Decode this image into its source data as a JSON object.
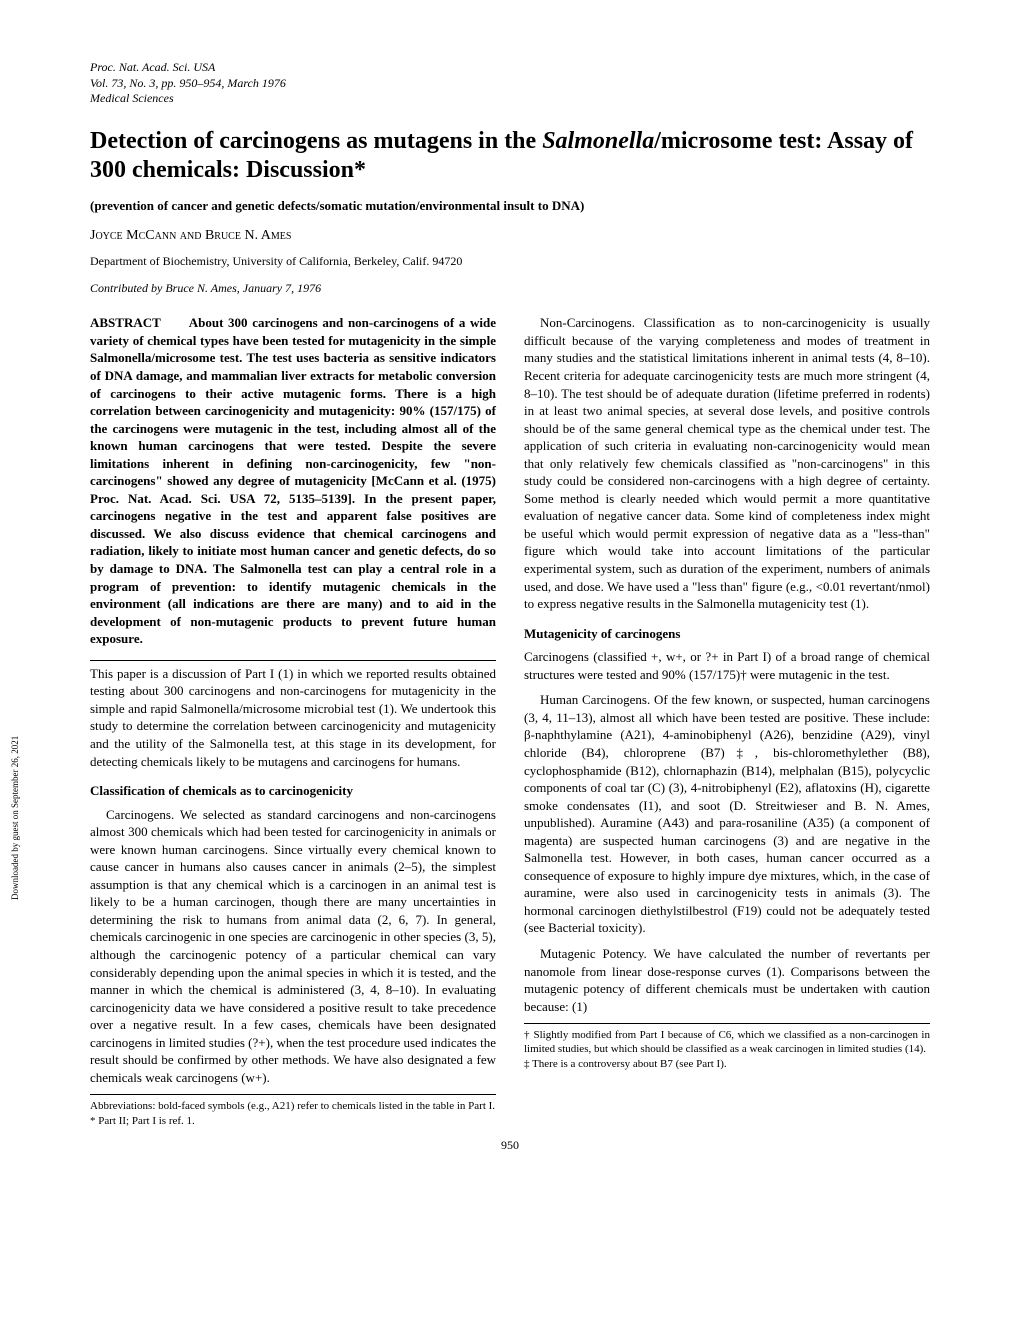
{
  "header": {
    "line1": "Proc. Nat. Acad. Sci. USA",
    "line2": "Vol. 73, No. 3, pp. 950–954, March 1976",
    "line3": "Medical Sciences"
  },
  "title": {
    "part1": "Detection of carcinogens as mutagens in the ",
    "italic": "Salmonella",
    "part2": "/microsome test: Assay of 300 chemicals: Discussion*"
  },
  "subtitle": "(prevention of cancer and genetic defects/somatic mutation/environmental insult to DNA)",
  "authors": "Joyce McCann and Bruce N. Ames",
  "affiliation": "Department of Biochemistry, University of California, Berkeley, Calif. 94720",
  "contributed": "Contributed by Bruce N. Ames, January 7, 1976",
  "abstract_label": "ABSTRACT",
  "abstract_text": "About 300 carcinogens and non-carcinogens of a wide variety of chemical types have been tested for mutagenicity in the simple Salmonella/microsome test. The test uses bacteria as sensitive indicators of DNA damage, and mammalian liver extracts for metabolic conversion of carcinogens to their active mutagenic forms. There is a high correlation between carcinogenicity and mutagenicity: 90% (157/175) of the carcinogens were mutagenic in the test, including almost all of the known human carcinogens that were tested. Despite the severe limitations inherent in defining non-carcinogenicity, few \"non-carcinogens\" showed any degree of mutagenicity [McCann et al. (1975) Proc. Nat. Acad. Sci. USA 72, 5135–5139]. In the present paper, carcinogens negative in the test and apparent false positives are discussed. We also discuss evidence that chemical carcinogens and radiation, likely to initiate most human cancer and genetic defects, do so by damage to DNA. The Salmonella test can play a central role in a program of prevention: to identify mutagenic chemicals in the environment (all indications are there are many) and to aid in the development of non-mutagenic products to prevent future human exposure.",
  "col1_p1": "This paper is a discussion of Part I (1) in which we reported results obtained testing about 300 carcinogens and non-carcinogens for mutagenicity in the simple and rapid Salmonella/microsome microbial test (1). We undertook this study to determine the correlation between carcinogenicity and mutagenicity and the utility of the Salmonella test, at this stage in its development, for detecting chemicals likely to be mutagens and carcinogens for humans.",
  "heading1": "Classification of chemicals as to carcinogenicity",
  "col1_p2": "Carcinogens. We selected as standard carcinogens and non-carcinogens almost 300 chemicals which had been tested for carcinogenicity in animals or were known human carcinogens. Since virtually every chemical known to cause cancer in humans also causes cancer in animals (2–5), the simplest assumption is that any chemical which is a carcinogen in an animal test is likely to be a human carcinogen, though there are many uncertainties in determining the risk to humans from animal data (2, 6, 7). In general, chemicals carcinogenic in one species are carcinogenic in other species (3, 5), although the carcinogenic potency of a particular chemical can vary considerably depending upon the animal species in which it is tested, and the manner in which the chemical is administered (3, 4, 8–10). In evaluating carcinogenicity data we have considered a positive result to take precedence over a negative result. In a few cases, chemicals have been designated carcinogens in limited studies (?+), when the test procedure used indicates the result should be confirmed by other methods. We have also designated a few chemicals weak carcinogens (w+).",
  "col1_footnote1": "Abbreviations: bold-faced symbols (e.g., A21) refer to chemicals listed in the table in Part I.",
  "col1_footnote2": "* Part II; Part I is ref. 1.",
  "col2_p1": "Non-Carcinogens. Classification as to non-carcinogenicity is usually difficult because of the varying completeness and modes of treatment in many studies and the statistical limitations inherent in animal tests (4, 8–10). Recent criteria for adequate carcinogenicity tests are much more stringent (4, 8–10). The test should be of adequate duration (lifetime preferred in rodents) in at least two animal species, at several dose levels, and positive controls should be of the same general chemical type as the chemical under test. The application of such criteria in evaluating non-carcinogenicity would mean that only relatively few chemicals classified as \"non-carcinogens\" in this study could be considered non-carcinogens with a high degree of certainty. Some method is clearly needed which would permit a more quantitative evaluation of negative cancer data. Some kind of completeness index might be useful which would permit expression of negative data as a \"less-than\" figure which would take into account limitations of the particular experimental system, such as duration of the experiment, numbers of animals used, and dose. We have used a \"less than\" figure (e.g., <0.01 revertant/nmol) to express negative results in the Salmonella mutagenicity test (1).",
  "heading2": "Mutagenicity of carcinogens",
  "col2_p2": "Carcinogens (classified +, w+, or ?+ in Part I) of a broad range of chemical structures were tested and 90% (157/175)† were mutagenic in the test.",
  "col2_p3": "Human Carcinogens. Of the few known, or suspected, human carcinogens (3, 4, 11–13), almost all which have been tested are positive. These include: β-naphthylamine (A21), 4-aminobiphenyl (A26), benzidine (A29), vinyl chloride (B4), chloroprene (B7)‡, bis-chloromethylether (B8), cyclophosphamide (B12), chlornaphazin (B14), melphalan (B15), polycyclic components of coal tar (C) (3), 4-nitrobiphenyl (E2), aflatoxins (H), cigarette smoke condensates (I1), and soot (D. Streitwieser and B. N. Ames, unpublished). Auramine (A43) and para-rosaniline (A35) (a component of magenta) are suspected human carcinogens (3) and are negative in the Salmonella test. However, in both cases, human cancer occurred as a consequence of exposure to highly impure dye mixtures, which, in the case of auramine, were also used in carcinogenicity tests in animals (3). The hormonal carcinogen diethylstilbestrol (F19) could not be adequately tested (see Bacterial toxicity).",
  "col2_p4": "Mutagenic Potency. We have calculated the number of revertants per nanomole from linear dose-response curves (1). Comparisons between the mutagenic potency of different chemicals must be undertaken with caution because: (1)",
  "col2_footnote1": "† Slightly modified from Part I because of C6, which we classified as a non-carcinogen in limited studies, but which should be classified as a weak carcinogen in limited studies (14).",
  "col2_footnote2": "‡ There is a controversy about B7 (see Part I).",
  "page_number": "950",
  "side_note": "Downloaded by guest on September 26, 2021"
}
